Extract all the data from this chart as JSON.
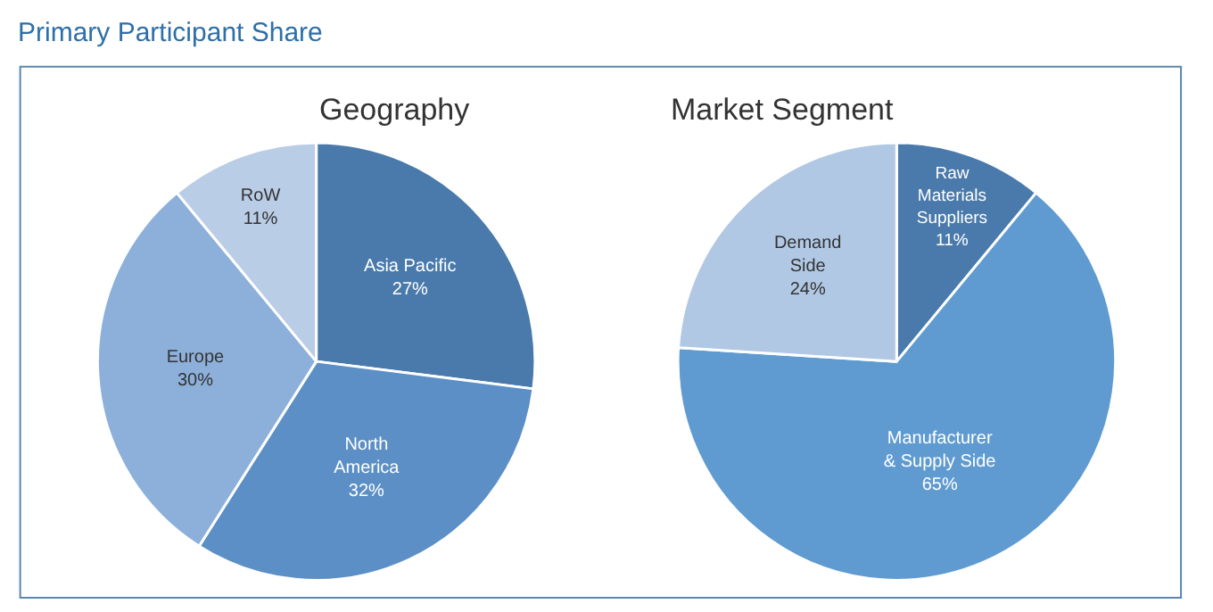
{
  "chart_data": [
    {
      "type": "pie",
      "title": "Geography",
      "annotations": [
        "Primary Participant Share"
      ],
      "categories": [
        "Asia Pacific",
        "North\nAmerica",
        "Europe",
        "RoW"
      ],
      "values": [
        27,
        32,
        30,
        11
      ],
      "value_labels": [
        "27%",
        "32%",
        "30%",
        "11%"
      ],
      "colors": [
        "#4a7aab",
        "#5b8fc6",
        "#8cb0da",
        "#bacde6"
      ]
    },
    {
      "type": "pie",
      "title": "Market Segment",
      "categories": [
        "Raw\nMaterials\nSuppliers",
        "Manufacturer\n& Supply Side",
        "Demand\nSide"
      ],
      "values": [
        11,
        65,
        24
      ],
      "value_labels": [
        "11%",
        "65%",
        "24%"
      ],
      "colors": [
        "#4a7aab",
        "#5f9bd1",
        "#b1c8e5"
      ]
    }
  ]
}
